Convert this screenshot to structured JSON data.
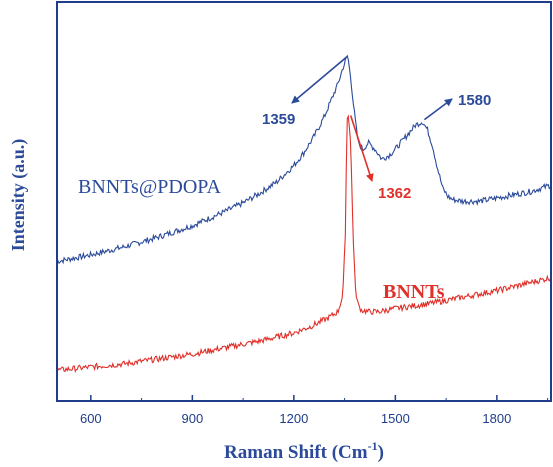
{
  "chart_data": {
    "type": "line",
    "xlabel": "Raman Shift (Cm",
    "xlabel_sup": "-1",
    "xlabel_close": ")",
    "ylabel": "Intensity (a.u.)",
    "xlim": [
      500,
      1960
    ],
    "ylim": [
      0,
      100
    ],
    "xticks": [
      600,
      900,
      1200,
      1500,
      1800
    ],
    "y_tick_labels_shown": false,
    "grid": false,
    "colors": {
      "axis": "#1f3d8a",
      "pdopa": "#2b4a9a",
      "bnnt": "#e0302a"
    },
    "series": [
      {
        "name": "BNNTs@PDOPA",
        "color": "#2b4a9a",
        "x": [
          500,
          600,
          700,
          800,
          900,
          1000,
          1050,
          1100,
          1150,
          1200,
          1230,
          1260,
          1290,
          1310,
          1330,
          1345,
          1359,
          1368,
          1378,
          1390,
          1405,
          1420,
          1440,
          1460,
          1480,
          1500,
          1520,
          1540,
          1560,
          1580,
          1595,
          1610,
          1625,
          1640,
          1655,
          1670,
          1700,
          1750,
          1800,
          1850,
          1900,
          1930,
          1960
        ],
        "y": [
          36.5,
          38.5,
          41,
          44,
          47.5,
          52,
          54.5,
          57.5,
          61,
          66,
          70,
          75,
          81,
          86,
          91,
          96,
          100,
          93,
          83,
          73,
          71,
          73,
          71,
          68,
          69,
          71,
          73.5,
          76,
          78.5,
          79.5,
          77,
          72,
          65,
          59,
          56.5,
          55.5,
          55,
          55,
          56,
          57,
          58,
          59,
          60
        ]
      },
      {
        "name": "BNNTs",
        "color": "#e0302a",
        "x": [
          500,
          600,
          700,
          800,
          900,
          1000,
          1100,
          1200,
          1250,
          1300,
          1330,
          1345,
          1352,
          1357,
          1362,
          1368,
          1375,
          1382,
          1390,
          1400,
          1420,
          1450,
          1500,
          1600,
          1700,
          1800,
          1900,
          1960
        ],
        "y": [
          3,
          4,
          5,
          6.5,
          8,
          10,
          12,
          14.5,
          16.5,
          19,
          21,
          26,
          45,
          80,
          82,
          72,
          45,
          28,
          23,
          21.5,
          21,
          21,
          22,
          23.5,
          25.5,
          27.5,
          30,
          31.5
        ]
      }
    ],
    "annotations": [
      {
        "text": "1359",
        "color": "#2b4a9a",
        "x": 1359,
        "y": 100
      },
      {
        "text": "1580",
        "color": "#2b4a9a",
        "x": 1580,
        "y": 79.5
      },
      {
        "text": "1362",
        "color": "#e0302a",
        "x": 1362,
        "y": 82
      }
    ]
  }
}
